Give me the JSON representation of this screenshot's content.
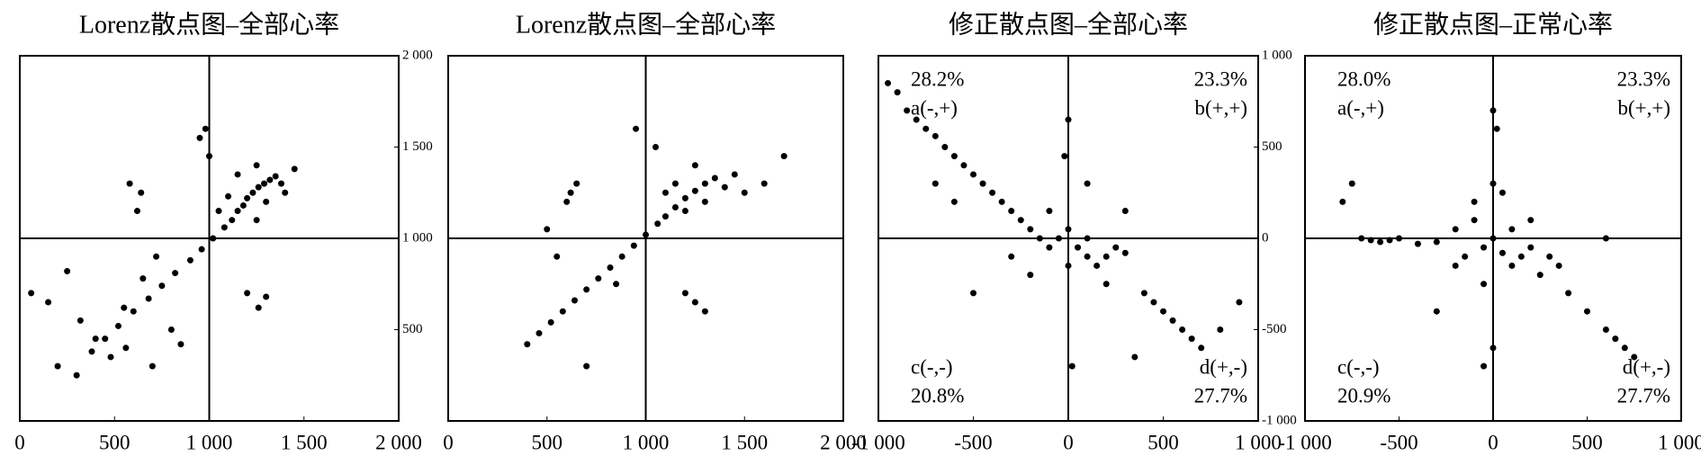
{
  "chart_data": [
    {
      "type": "scatter",
      "title": "Lorenz散点图–全部心率",
      "color": "#000000",
      "xlim": [
        0,
        2000
      ],
      "ylim": [
        0,
        2000
      ],
      "crosshair": [
        1000,
        1000
      ],
      "ytick_side": "right",
      "xticks": [
        0,
        500,
        {
          "value": 1000,
          "label": "1 000"
        },
        {
          "value": 1500,
          "label": "1 500"
        },
        {
          "value": 2000,
          "label": "2 000"
        }
      ],
      "yticks": [
        500,
        {
          "value": 1000,
          "label": "1 000"
        },
        {
          "value": 1500,
          "label": "1 500"
        },
        {
          "value": 2000,
          "label": "2 000"
        }
      ],
      "x": [
        380,
        450,
        520,
        600,
        680,
        750,
        820,
        900,
        960,
        1020,
        1080,
        1120,
        1150,
        1180,
        1200,
        1230,
        1260,
        1290,
        1320,
        1350,
        1380,
        1100,
        1150,
        1250,
        1300,
        1050,
        1000,
        1400,
        1450,
        1250,
        60,
        150,
        250,
        320,
        400,
        480,
        550,
        650,
        720,
        800,
        200,
        300,
        580,
        640,
        620,
        1200,
        1260,
        1300,
        950,
        980,
        560,
        700,
        850
      ],
      "values": [
        380,
        450,
        520,
        600,
        670,
        740,
        810,
        880,
        940,
        1000,
        1060,
        1100,
        1150,
        1180,
        1220,
        1250,
        1280,
        1300,
        1320,
        1340,
        1300,
        1230,
        1350,
        1400,
        1200,
        1150,
        1450,
        1250,
        1380,
        1100,
        700,
        650,
        820,
        550,
        450,
        350,
        620,
        780,
        900,
        500,
        300,
        250,
        1300,
        1250,
        1150,
        700,
        620,
        680,
        1550,
        1600,
        400,
        300,
        420
      ]
    },
    {
      "type": "scatter",
      "title": "Lorenz散点图–全部心率",
      "color": "#000000",
      "xlim": [
        0,
        2000
      ],
      "ylim": [
        0,
        2000
      ],
      "crosshair": [
        1000,
        1000
      ],
      "xticks": [
        0,
        500,
        {
          "value": 1000,
          "label": "1 000"
        },
        {
          "value": 1500,
          "label": "1 500"
        },
        {
          "value": 2000,
          "label": "2 000"
        }
      ],
      "x": [
        400,
        460,
        520,
        580,
        640,
        700,
        760,
        820,
        880,
        940,
        1000,
        1060,
        1100,
        1150,
        1200,
        1250,
        1300,
        1350,
        1400,
        1150,
        1250,
        1300,
        1100,
        1200,
        1450,
        1500,
        1600,
        1050,
        950,
        650,
        620,
        600,
        1200,
        1250,
        1300,
        700,
        500,
        1700,
        550,
        850
      ],
      "values": [
        420,
        480,
        540,
        600,
        660,
        720,
        780,
        840,
        900,
        960,
        1020,
        1080,
        1120,
        1170,
        1220,
        1260,
        1300,
        1330,
        1280,
        1300,
        1400,
        1200,
        1250,
        1150,
        1350,
        1250,
        1300,
        1500,
        1600,
        1300,
        1250,
        1200,
        700,
        650,
        600,
        300,
        1050,
        1450,
        900,
        750
      ]
    },
    {
      "type": "scatter",
      "title": "修正散点图–全部心率",
      "color": "#000000",
      "xlim": [
        -1000,
        1000
      ],
      "ylim": [
        -1000,
        1000
      ],
      "crosshair": [
        0,
        0
      ],
      "ytick_side": "right",
      "xticks": [
        {
          "value": -1000,
          "label": "-1 000"
        },
        -500,
        0,
        500,
        {
          "value": 1000,
          "label": "1 000"
        }
      ],
      "yticks": [
        {
          "value": -1000,
          "label": "-1 000"
        },
        -500,
        0,
        500,
        {
          "value": 1000,
          "label": "1 000"
        }
      ],
      "annotations": [
        {
          "corner": "top-left",
          "lines": [
            "28.2%",
            "a(-,+)"
          ]
        },
        {
          "corner": "top-right",
          "lines": [
            "23.3%",
            "b(+,+)"
          ]
        },
        {
          "corner": "bottom-left",
          "lines": [
            "c(-,-)",
            "20.8%"
          ]
        },
        {
          "corner": "bottom-right",
          "lines": [
            "d(+,-)",
            "27.7%"
          ]
        }
      ],
      "x": [
        -950,
        -900,
        -850,
        -800,
        -750,
        -700,
        -650,
        -600,
        -550,
        -500,
        -450,
        -400,
        -350,
        -300,
        -250,
        -200,
        -150,
        -100,
        -50,
        0,
        50,
        100,
        150,
        200,
        250,
        300,
        -100,
        0,
        100,
        -200,
        200,
        400,
        450,
        500,
        550,
        600,
        650,
        700,
        800,
        900,
        -600,
        -700,
        -500,
        0,
        20,
        -20,
        300,
        -300,
        350,
        100
      ],
      "values": [
        850,
        800,
        700,
        650,
        600,
        560,
        500,
        450,
        400,
        350,
        300,
        250,
        200,
        150,
        100,
        50,
        0,
        -50,
        0,
        50,
        -50,
        -100,
        -150,
        -100,
        -50,
        -80,
        150,
        -150,
        0,
        -200,
        -250,
        -300,
        -350,
        -400,
        -450,
        -500,
        -550,
        -600,
        -500,
        -350,
        200,
        300,
        -300,
        650,
        -700,
        450,
        150,
        -100,
        -650,
        300
      ]
    },
    {
      "type": "scatter",
      "title": "修正散点图–正常心率",
      "color": "#000000",
      "xlim": [
        -1000,
        1000
      ],
      "ylim": [
        -1000,
        1000
      ],
      "crosshair": [
        0,
        0
      ],
      "xticks": [
        {
          "value": -1000,
          "label": "-1 000"
        },
        -500,
        0,
        500,
        {
          "value": 1000,
          "label": "1 000"
        }
      ],
      "annotations": [
        {
          "corner": "top-left",
          "lines": [
            "28.0%",
            "a(-,+)"
          ]
        },
        {
          "corner": "top-right",
          "lines": [
            "23.3%",
            "b(+,+)"
          ]
        },
        {
          "corner": "bottom-left",
          "lines": [
            "c(-,-)",
            "20.9%"
          ]
        },
        {
          "corner": "bottom-right",
          "lines": [
            "d(+,-)",
            "27.7%"
          ]
        }
      ],
      "x": [
        -700,
        -650,
        -600,
        -550,
        -500,
        -400,
        -300,
        -200,
        -150,
        -100,
        -50,
        0,
        50,
        100,
        150,
        200,
        250,
        300,
        350,
        -100,
        0,
        100,
        -200,
        200,
        -50,
        50,
        0,
        20,
        400,
        500,
        600,
        650,
        700,
        750,
        -800,
        -750,
        0,
        -50,
        600,
        -300
      ],
      "values": [
        0,
        -10,
        -20,
        -10,
        0,
        -30,
        -20,
        50,
        -100,
        100,
        -50,
        0,
        -80,
        -150,
        -100,
        -50,
        -200,
        -100,
        -150,
        200,
        300,
        50,
        -150,
        100,
        -250,
        250,
        700,
        600,
        -300,
        -400,
        -500,
        -550,
        -600,
        -650,
        200,
        300,
        -600,
        -700,
        0,
        -400
      ]
    }
  ]
}
